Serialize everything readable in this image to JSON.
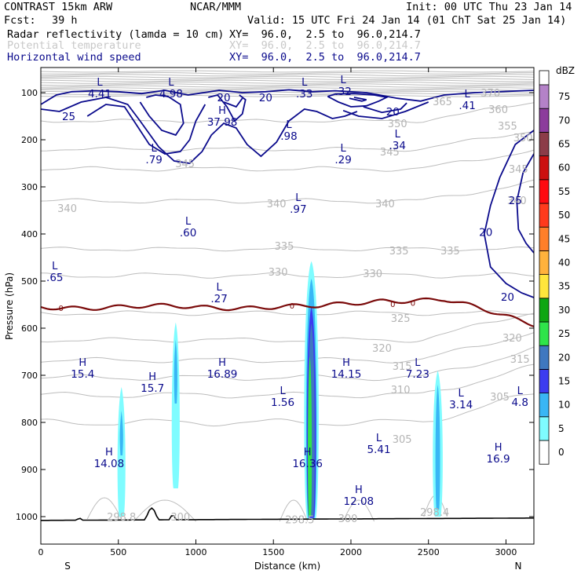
{
  "header": {
    "model": "CONTRAST 15km ARW",
    "org": "NCAR/MMM",
    "init": "Init: 00 UTC Thu 23 Jan 14",
    "fcst_label": "Fcst:",
    "fcst_value": "39 h",
    "valid": "Valid: 15 UTC Fri 24 Jan 14 (01 ChT Sat 25 Jan 14)",
    "fields": [
      {
        "name": "Radar reflectivity (lamda = 10 cm)",
        "xy": "XY=  96.0,  2.5 to  96.0,214.7"
      },
      {
        "name": "Potential temperature",
        "xy": "XY=  96.0,  2.5 to  96.0,214.7"
      },
      {
        "name": "Horizontal wind speed",
        "xy": "XY=  96.0,  2.5 to  96.0,214.7"
      }
    ]
  },
  "chart_data": {
    "type": "cross-section",
    "xlabel": "Distance (km)",
    "ylabel": "Pressure (hPa)",
    "xlim": [
      0,
      3180
    ],
    "ylim": [
      1050,
      45
    ],
    "x_ticks": [
      0,
      500,
      1000,
      1500,
      2000,
      2500,
      3000
    ],
    "y_ticks": [
      100,
      200,
      300,
      400,
      500,
      600,
      700,
      800,
      900,
      1000
    ],
    "x_end_labels": {
      "left": "S",
      "right": "N"
    },
    "colorbar": {
      "unit": "dBZ",
      "levels": [
        0,
        5,
        10,
        15,
        20,
        25,
        30,
        35,
        40,
        45,
        50,
        55,
        60,
        65,
        70,
        75
      ],
      "colors": [
        "#ffffff",
        "#7ffcff",
        "#39b6f5",
        "#3c3cf0",
        "#3f78c0",
        "#2fe44a",
        "#0ea612",
        "#ffe63c",
        "#ffb23c",
        "#ff7f2a",
        "#ff3a1c",
        "#ff0a10",
        "#cc1010",
        "#8c3c48",
        "#8c3c9c",
        "#b482c8"
      ]
    },
    "theta_labels": [
      {
        "text": "370",
        "x": 2900,
        "p": 100
      },
      {
        "text": "365",
        "x": 2590,
        "p": 118
      },
      {
        "text": "360",
        "x": 2950,
        "p": 135
      },
      {
        "text": "355",
        "x": 3010,
        "p": 170
      },
      {
        "text": "350",
        "x": 2300,
        "p": 165
      },
      {
        "text": "350",
        "x": 3110,
        "p": 195
      },
      {
        "text": "345",
        "x": 2250,
        "p": 225
      },
      {
        "text": "345",
        "x": 930,
        "p": 250
      },
      {
        "text": "345",
        "x": 3080,
        "p": 262
      },
      {
        "text": "340",
        "x": 170,
        "p": 345
      },
      {
        "text": "340",
        "x": 1520,
        "p": 335
      },
      {
        "text": "340",
        "x": 2220,
        "p": 335
      },
      {
        "text": "340",
        "x": 3070,
        "p": 328
      },
      {
        "text": "335",
        "x": 1570,
        "p": 425
      },
      {
        "text": "335",
        "x": 2310,
        "p": 435
      },
      {
        "text": "335",
        "x": 2640,
        "p": 435
      },
      {
        "text": "330",
        "x": 1530,
        "p": 480
      },
      {
        "text": "330",
        "x": 2140,
        "p": 483
      },
      {
        "text": "325",
        "x": 2320,
        "p": 578
      },
      {
        "text": "320",
        "x": 2200,
        "p": 642
      },
      {
        "text": "320",
        "x": 3040,
        "p": 620
      },
      {
        "text": "315",
        "x": 2330,
        "p": 680
      },
      {
        "text": "315",
        "x": 3090,
        "p": 665
      },
      {
        "text": "310",
        "x": 2320,
        "p": 730
      },
      {
        "text": "305",
        "x": 2330,
        "p": 835
      },
      {
        "text": "305",
        "x": 2960,
        "p": 745
      },
      {
        "text": "298.8",
        "x": 520,
        "p": 1000
      },
      {
        "text": "300",
        "x": 900,
        "p": 1000
      },
      {
        "text": "298.5",
        "x": 1670,
        "p": 1006
      },
      {
        "text": "300",
        "x": 1980,
        "p": 1003
      },
      {
        "text": "298.4",
        "x": 2540,
        "p": 990
      }
    ],
    "wind_labels": [
      {
        "text": "25",
        "x": 180,
        "p": 150
      },
      {
        "text": "20",
        "x": 1180,
        "p": 110
      },
      {
        "text": "20",
        "x": 1450,
        "p": 110
      },
      {
        "text": "20",
        "x": 2270,
        "p": 140
      },
      {
        "text": "25",
        "x": 3060,
        "p": 328
      },
      {
        "text": "20",
        "x": 2870,
        "p": 396
      },
      {
        "text": "20",
        "x": 3010,
        "p": 533
      }
    ],
    "extrema": [
      {
        "type": "L",
        "value": "4.41",
        "x": 380,
        "p": 85
      },
      {
        "type": "L",
        "value": "4.98",
        "x": 840,
        "p": 85
      },
      {
        "type": "L",
        "value": ".33",
        "x": 1700,
        "p": 85
      },
      {
        "type": "L",
        "value": ".32",
        "x": 1950,
        "p": 80
      },
      {
        "type": "L",
        "value": ".41",
        "x": 2750,
        "p": 110
      },
      {
        "type": "H",
        "value": "37.98",
        "x": 1170,
        "p": 145
      },
      {
        "type": "L",
        "value": ".98",
        "x": 1600,
        "p": 175
      },
      {
        "type": "L",
        "value": ".34",
        "x": 2300,
        "p": 195
      },
      {
        "type": "L",
        "value": ".79",
        "x": 730,
        "p": 225
      },
      {
        "type": "L",
        "value": ".29",
        "x": 1950,
        "p": 225
      },
      {
        "type": "L",
        "value": ".97",
        "x": 1660,
        "p": 330
      },
      {
        "type": "L",
        "value": ".60",
        "x": 950,
        "p": 380
      },
      {
        "type": "L",
        "value": ".65",
        "x": 90,
        "p": 475
      },
      {
        "type": "L",
        "value": ".27",
        "x": 1150,
        "p": 520
      },
      {
        "type": "H",
        "value": "15.4",
        "x": 270,
        "p": 680
      },
      {
        "type": "H",
        "value": "15.7",
        "x": 720,
        "p": 710
      },
      {
        "type": "H",
        "value": "16.89",
        "x": 1170,
        "p": 680
      },
      {
        "type": "L",
        "value": "1.56",
        "x": 1560,
        "p": 740
      },
      {
        "type": "H",
        "value": "14.15",
        "x": 1970,
        "p": 680
      },
      {
        "type": "L",
        "value": "7.23",
        "x": 2430,
        "p": 680
      },
      {
        "type": "L",
        "value": "3.14",
        "x": 2710,
        "p": 745
      },
      {
        "type": "L",
        "value": "4.8",
        "x": 3090,
        "p": 740
      },
      {
        "type": "H",
        "value": "14.08",
        "x": 440,
        "p": 870
      },
      {
        "type": "H",
        "value": "16.36",
        "x": 1720,
        "p": 870
      },
      {
        "type": "L",
        "value": "5.41",
        "x": 2180,
        "p": 840
      },
      {
        "type": "H",
        "value": "16.9",
        "x": 2950,
        "p": 860
      },
      {
        "type": "H",
        "value": "12.08",
        "x": 2050,
        "p": 950
      }
    ],
    "freezing_label": "0"
  }
}
